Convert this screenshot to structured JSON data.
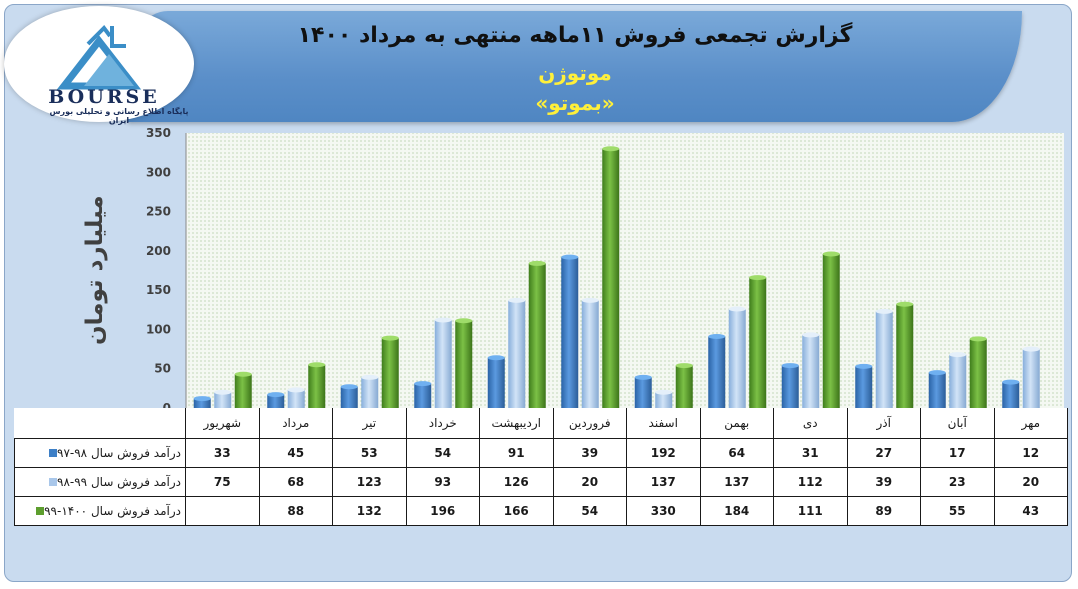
{
  "title": {
    "main": "گزارش تجمعی فروش ۱۱ماهه منتهی به مرداد ۱۴۰۰",
    "company": "موتوژن",
    "symbol": "«بموتو»"
  },
  "logo": {
    "text": "BOURSE",
    "subtitle": "پایگاه اطلاع رسانی و تحلیلی بورس ایران"
  },
  "colors": {
    "series1": "#3d7fc6",
    "series2": "#a9c7ea",
    "series3": "#5d9e2e",
    "plot_bg": "#f2f7f0",
    "banner": "#5b8fc9",
    "title_accent": "#fff03a"
  },
  "chart_data": {
    "type": "bar",
    "title": "",
    "xlabel": "",
    "ylabel": "میلیارد تومان",
    "ylim": [
      0,
      350
    ],
    "yticks": [
      0,
      50,
      100,
      150,
      200,
      250,
      300,
      350
    ],
    "grid": false,
    "categories": [
      "مهر",
      "آبان",
      "آذر",
      "دی",
      "بهمن",
      "اسفند",
      "فروردین",
      "اردیبهشت",
      "خرداد",
      "تیر",
      "مرداد",
      "شهریور"
    ],
    "series": [
      {
        "name": "درآمد فروش سال ۹۸-۹۷",
        "values": [
          12,
          17,
          27,
          31,
          64,
          192,
          39,
          91,
          54,
          53,
          45,
          33
        ]
      },
      {
        "name": "درآمد فروش سال ۹۹-۹۸",
        "values": [
          20,
          23,
          39,
          112,
          137,
          137,
          20,
          126,
          93,
          123,
          68,
          75
        ]
      },
      {
        "name": "درآمد فروش سال ۱۴۰۰-۹۹",
        "values": [
          43,
          55,
          89,
          111,
          184,
          330,
          54,
          166,
          196,
          132,
          88,
          null
        ]
      }
    ]
  }
}
